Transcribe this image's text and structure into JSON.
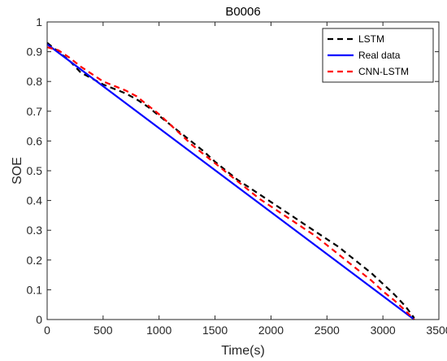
{
  "chart_data": {
    "type": "line",
    "title": "B0006",
    "xlabel": "Time(s)",
    "ylabel": "SOE",
    "xlim": [
      0,
      3500
    ],
    "ylim": [
      0,
      1
    ],
    "xticks": [
      0,
      500,
      1000,
      1500,
      2000,
      2500,
      3000,
      3500
    ],
    "yticks": [
      0,
      0.1,
      0.2,
      0.3,
      0.4,
      0.5,
      0.6,
      0.7,
      0.8,
      0.9,
      1
    ],
    "grid": false,
    "legend_position": "top-right",
    "series": [
      {
        "name": "LSTM",
        "color": "#000000",
        "dash": "dashed",
        "x": [
          0,
          100,
          200,
          300,
          400,
          500,
          600,
          700,
          800,
          900,
          1000,
          1100,
          1200,
          1300,
          1400,
          1500,
          1600,
          1700,
          1800,
          1900,
          2000,
          2100,
          2200,
          2300,
          2400,
          2500,
          2600,
          2700,
          2800,
          2900,
          3000,
          3100,
          3200,
          3280
        ],
        "y": [
          0.93,
          0.9,
          0.87,
          0.83,
          0.81,
          0.79,
          0.775,
          0.76,
          0.74,
          0.715,
          0.685,
          0.655,
          0.625,
          0.595,
          0.565,
          0.53,
          0.5,
          0.47,
          0.445,
          0.42,
          0.395,
          0.37,
          0.345,
          0.32,
          0.295,
          0.27,
          0.245,
          0.215,
          0.185,
          0.155,
          0.12,
          0.085,
          0.045,
          0.005
        ]
      },
      {
        "name": "Real data",
        "color": "#0000ff",
        "dash": "solid",
        "x": [
          0,
          3280
        ],
        "y": [
          0.925,
          0.0
        ]
      },
      {
        "name": "CNN-LSTM",
        "color": "#ff0000",
        "dash": "dashed",
        "x": [
          0,
          100,
          200,
          300,
          400,
          500,
          600,
          700,
          800,
          900,
          1000,
          1100,
          1200,
          1300,
          1400,
          1500,
          1600,
          1700,
          1800,
          1900,
          2000,
          2100,
          2200,
          2300,
          2400,
          2500,
          2600,
          2700,
          2800,
          2900,
          3000,
          3100,
          3200,
          3280
        ],
        "y": [
          0.915,
          0.905,
          0.88,
          0.85,
          0.825,
          0.8,
          0.785,
          0.77,
          0.75,
          0.72,
          0.69,
          0.655,
          0.62,
          0.585,
          0.555,
          0.525,
          0.495,
          0.465,
          0.435,
          0.405,
          0.38,
          0.355,
          0.33,
          0.305,
          0.28,
          0.25,
          0.22,
          0.19,
          0.16,
          0.13,
          0.095,
          0.065,
          0.03,
          0.0
        ]
      }
    ]
  }
}
